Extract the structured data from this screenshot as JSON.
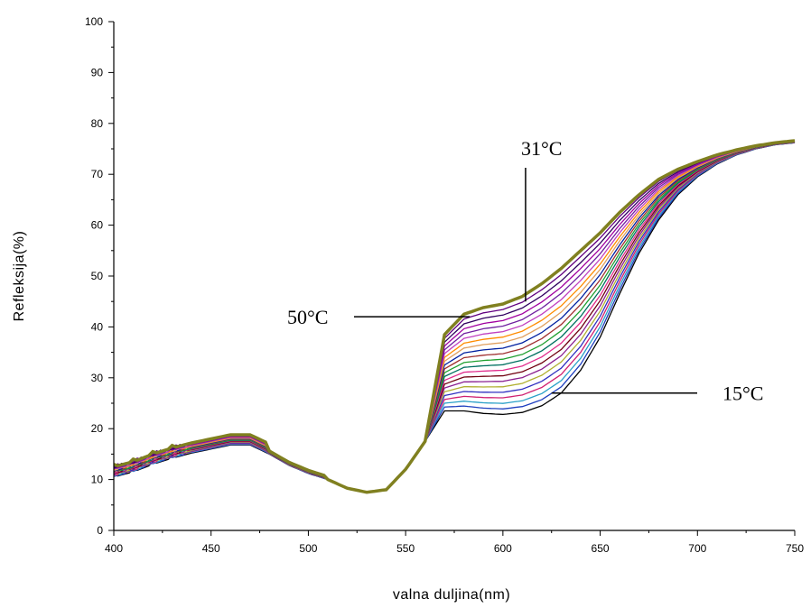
{
  "chart_data": {
    "type": "line",
    "title": "",
    "xlabel": "valna duljina(nm)",
    "ylabel": "Refleksija(%)",
    "xlim": [
      400,
      750
    ],
    "ylim": [
      0,
      100
    ],
    "x_ticks": [
      "400",
      "450",
      "500",
      "550",
      "600",
      "650",
      "700",
      "750"
    ],
    "y_ticks": [
      "0",
      "10",
      "20",
      "30",
      "40",
      "50",
      "60",
      "70",
      "80",
      "90",
      "100"
    ],
    "grid": false,
    "legend": "none",
    "annotations": [
      {
        "text": "50°C",
        "x": 583,
        "y": 42
      },
      {
        "text": "31°C",
        "x": 620,
        "y": 45
      },
      {
        "text": "15°C",
        "x": 625,
        "y": 27
      }
    ],
    "base_curve": {
      "x": [
        400,
        410,
        420,
        430,
        440,
        450,
        460,
        470,
        480,
        490,
        500,
        510,
        520,
        530,
        540,
        550,
        560
      ],
      "y": [
        10.5,
        11.5,
        13.0,
        14.2,
        15.2,
        16.0,
        16.8,
        16.8,
        15.0,
        12.8,
        11.2,
        10.0,
        8.3,
        7.5,
        8.0,
        12.0,
        17.5
      ]
    },
    "high_curve": {
      "x": [
        570,
        580,
        590,
        600,
        610,
        620,
        630,
        640,
        650,
        660,
        670,
        680,
        690,
        700,
        710,
        720,
        730,
        740,
        750
      ],
      "y": [
        38.5,
        42.5,
        43.8,
        44.5,
        46.0,
        48.5,
        51.5,
        55.0,
        58.5,
        62.5,
        66.0,
        69.0,
        71.0,
        72.5,
        73.8,
        74.8,
        75.6,
        76.2,
        76.6
      ]
    },
    "low_curve": {
      "x": [
        570,
        580,
        590,
        600,
        610,
        620,
        630,
        640,
        650,
        660,
        670,
        680,
        690,
        700,
        710,
        720,
        730,
        740,
        750
      ],
      "y": [
        23.5,
        23.5,
        23.0,
        22.8,
        23.2,
        24.5,
        27.0,
        31.5,
        38.0,
        46.5,
        54.5,
        61.0,
        66.0,
        69.5,
        72.0,
        73.8,
        75.0,
        75.8,
        76.2
      ]
    },
    "series": [
      {
        "color": "#000000",
        "plateau": 24
      },
      {
        "color": "#1f3fbf",
        "plateau": 24.5
      },
      {
        "color": "#2aa0c8",
        "plateau": 25
      },
      {
        "color": "#d02070",
        "plateau": 25.8
      },
      {
        "color": "#3030c0",
        "plateau": 26.7
      },
      {
        "color": "#b0b030",
        "plateau": 27.6
      },
      {
        "color": "#8a2090",
        "plateau": 28.6
      },
      {
        "color": "#700010",
        "plateau": 29.6
      },
      {
        "color": "#e02a8a",
        "plateau": 30.7
      },
      {
        "color": "#007060",
        "plateau": 32.0
      },
      {
        "color": "#20a030",
        "plateau": 33.6
      },
      {
        "color": "#a03030",
        "plateau": 35.0
      },
      {
        "color": "#0020a0",
        "plateau": 36.5
      },
      {
        "color": "#e0a060",
        "plateau": 38.0
      },
      {
        "color": "#ff8c00",
        "plateau": 39.2
      },
      {
        "color": "#c040c0",
        "plateau": 40.2
      },
      {
        "color": "#7020a0",
        "plateau": 41.0
      },
      {
        "color": "#a000a0",
        "plateau": 41.8
      },
      {
        "color": "#300060",
        "plateau": 42.5
      },
      {
        "color": "#600080",
        "plateau": 43.2
      },
      {
        "color": "#808020",
        "plateau": 44.0
      }
    ]
  }
}
